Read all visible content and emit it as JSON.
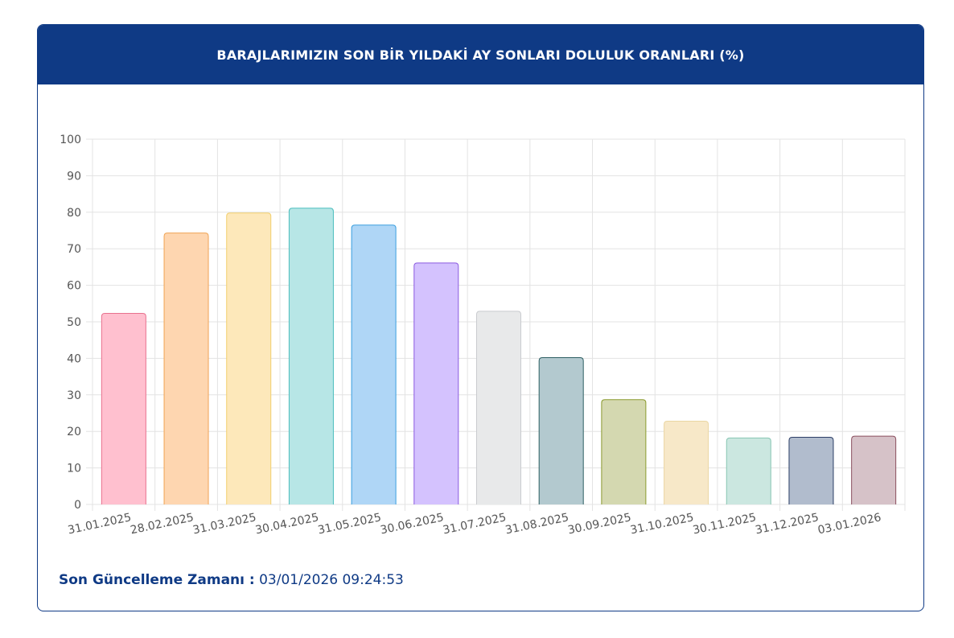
{
  "header": {
    "title": "BARAJLARIMIZIN SON BİR YILDAKİ AY SONLARI DOLULUK ORANLARI (%)"
  },
  "footer": {
    "label": "Son Güncelleme Zamanı :",
    "value": "03/01/2026 09:24:53"
  },
  "colors": {
    "header_bg": "#0f3a85",
    "grid": "#e3e3e3",
    "tick_text": "#555555"
  },
  "chart_data": {
    "type": "bar",
    "categories": [
      "31.01.2025",
      "28.02.2025",
      "31.03.2025",
      "30.04.2025",
      "31.05.2025",
      "30.06.2025",
      "31.07.2025",
      "31.08.2025",
      "30.09.2025",
      "31.10.2025",
      "30.11.2025",
      "31.12.2025",
      "03.01.2026"
    ],
    "values": [
      52.3,
      74.3,
      79.8,
      81.1,
      76.5,
      66.1,
      52.9,
      40.2,
      28.7,
      22.8,
      18.2,
      18.4,
      18.7
    ],
    "bar_fill": [
      "#ffc0cf",
      "#fed6b0",
      "#fde8ba",
      "#b7e6e6",
      "#afd6f6",
      "#d4c2fe",
      "#e8e9ea",
      "#b3c9cf",
      "#d4d8b0",
      "#f7e8c8",
      "#cbe7e0",
      "#b1bccd",
      "#d6c2c8"
    ],
    "bar_border": [
      "#e8718e",
      "#f0a455",
      "#f2cf6e",
      "#4bbdbd",
      "#3a9fdf",
      "#8a5ae0",
      "#c9cbcf",
      "#2e5f63",
      "#8a9a2e",
      "#ead6a3",
      "#88c6b3",
      "#2c3e66",
      "#8a4f5f"
    ],
    "ylim": [
      0,
      100
    ],
    "yticks": [
      0,
      10,
      20,
      30,
      40,
      50,
      60,
      70,
      80,
      90,
      100
    ],
    "grid": true,
    "legend": "none",
    "title": "",
    "xlabel": "",
    "ylabel": ""
  }
}
